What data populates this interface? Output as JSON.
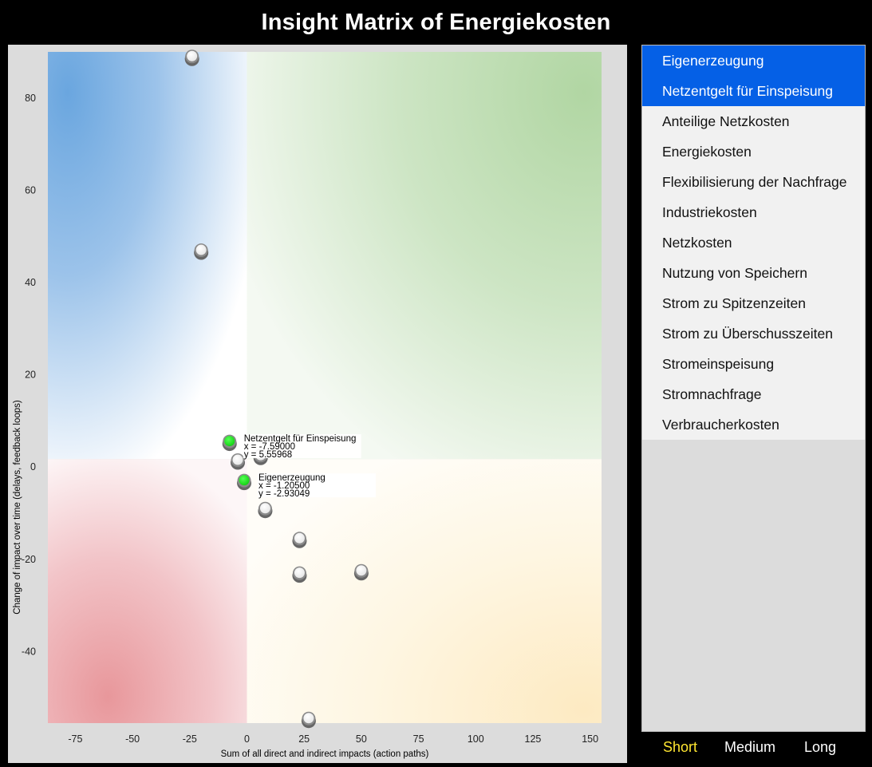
{
  "title": "Insight Matrix of Energiekosten",
  "colors": {
    "selected_bg": "#0560e6",
    "active_range": "#ffe631",
    "point_highlight": "#22ee22",
    "quadrant_top_left": "#6aa6df",
    "quadrant_top_right": "#b1d6a3",
    "quadrant_bottom_left": "#e8979b",
    "quadrant_bottom_right": "#fdefc7"
  },
  "factor_list": {
    "items": [
      {
        "label": "Eigenerzeugung",
        "selected": true
      },
      {
        "label": "Netzentgelt für Einspeisung",
        "selected": true
      },
      {
        "label": "Anteilige Netzkosten",
        "selected": false
      },
      {
        "label": "Energiekosten",
        "selected": false
      },
      {
        "label": "Flexibilisierung der Nachfrage",
        "selected": false
      },
      {
        "label": "Industriekosten",
        "selected": false
      },
      {
        "label": "Netzkosten",
        "selected": false
      },
      {
        "label": "Nutzung von Speichern",
        "selected": false
      },
      {
        "label": "Strom zu Spitzenzeiten",
        "selected": false
      },
      {
        "label": "Strom zu Überschusszeiten",
        "selected": false
      },
      {
        "label": "Stromeinspeisung",
        "selected": false
      },
      {
        "label": "Stromnachfrage",
        "selected": false
      },
      {
        "label": "Verbraucherkosten",
        "selected": false
      }
    ]
  },
  "time_range": {
    "short": "Short",
    "medium": "Medium",
    "long": "Long",
    "active": "short"
  },
  "chart_data": {
    "type": "scatter",
    "xlabel": "Sum of all direct and indirect impacts (action paths)",
    "ylabel": "Change of impact over time (delays, feedback loops)",
    "xlim": [
      -87,
      155
    ],
    "ylim": [
      -55.5,
      90
    ],
    "xticks": [
      -75,
      -50,
      -25,
      0,
      25,
      50,
      75,
      100,
      125,
      150
    ],
    "yticks": [
      80,
      60,
      40,
      20,
      0,
      -20,
      -40
    ],
    "points": [
      {
        "x": -24,
        "y": 89
      },
      {
        "x": -20,
        "y": 47
      },
      {
        "x": -4,
        "y": 1.5
      },
      {
        "x": 6,
        "y": 2.5
      },
      {
        "x": 8,
        "y": -9
      },
      {
        "x": 23,
        "y": -15.5
      },
      {
        "x": 23,
        "y": -23
      },
      {
        "x": 50,
        "y": -22.5
      },
      {
        "x": 27,
        "y": -54.5
      },
      {
        "x": -7.59,
        "y": 5.55968,
        "highlight": true,
        "label": "Netzentgelt für Einspeisung",
        "x_text": "x = -7.59000",
        "y_text": "y = 5.55968"
      },
      {
        "x": -1.205,
        "y": -2.93049,
        "highlight": true,
        "label": "Eigenerzeugung",
        "x_text": "x = -1.20500",
        "y_text": "y = -2.93049"
      }
    ]
  }
}
